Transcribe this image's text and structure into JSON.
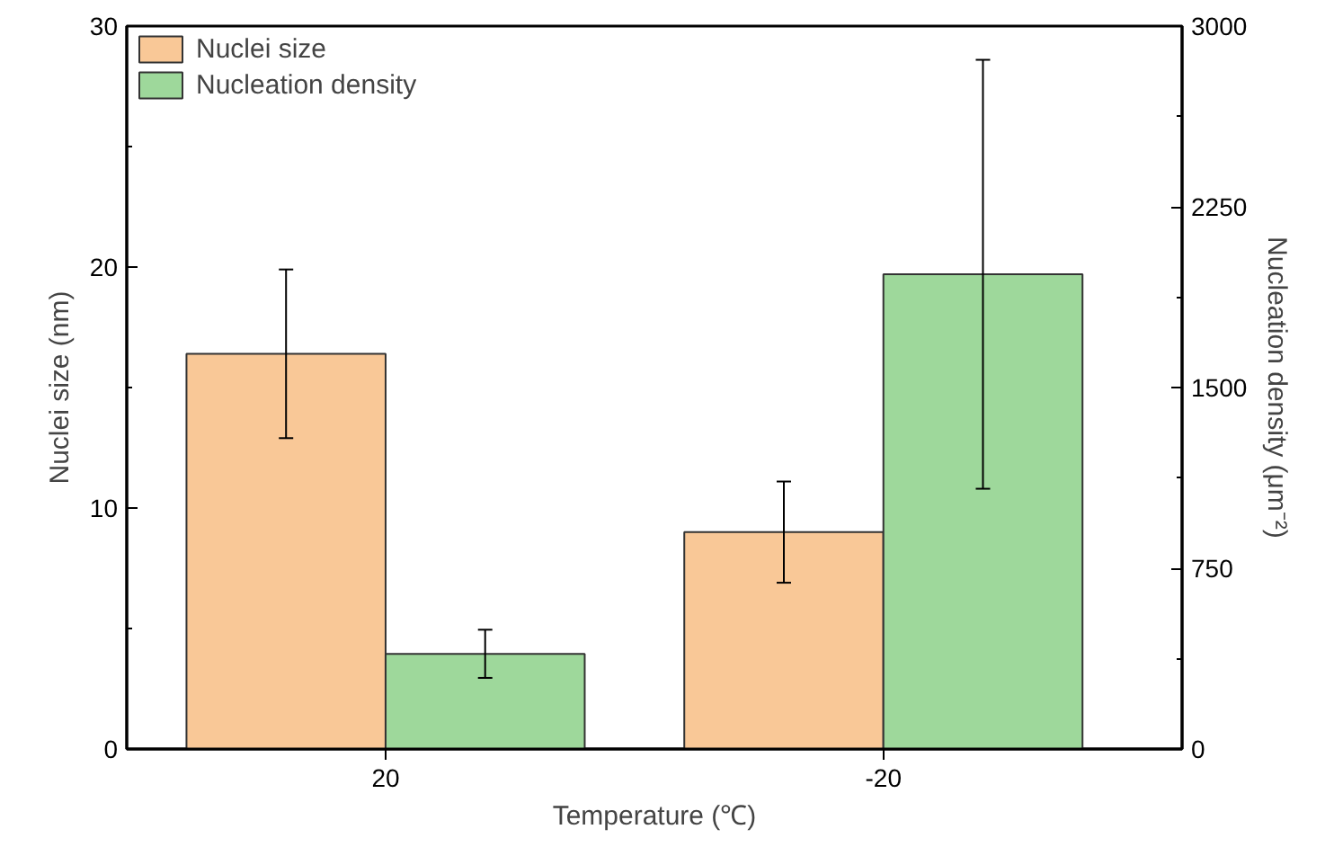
{
  "chart_data": {
    "type": "bar",
    "categories": [
      "20",
      "-20"
    ],
    "xlabel": "Temperature (℃)",
    "ylabel": "Nuclei size (nm)",
    "y2label": "Nucleation density (μm⁻²)",
    "series": [
      {
        "name": "Nuclei size",
        "color": "#f9c897",
        "values": [
          16.4,
          9.0
        ],
        "errors": [
          3.5,
          2.1
        ]
      },
      {
        "name": "Nucleation density",
        "color": "#9ed89b",
        "values": [
          395,
          1970
        ],
        "errors": [
          100,
          890
        ],
        "axis": "y2"
      }
    ],
    "ylim": [
      0,
      30
    ],
    "yticks": [
      0,
      10,
      20,
      30
    ],
    "y2lim": [
      0,
      3000
    ],
    "y2ticks": [
      0,
      750,
      1500,
      2250,
      3000
    ],
    "grid": false,
    "legend": "top left"
  }
}
